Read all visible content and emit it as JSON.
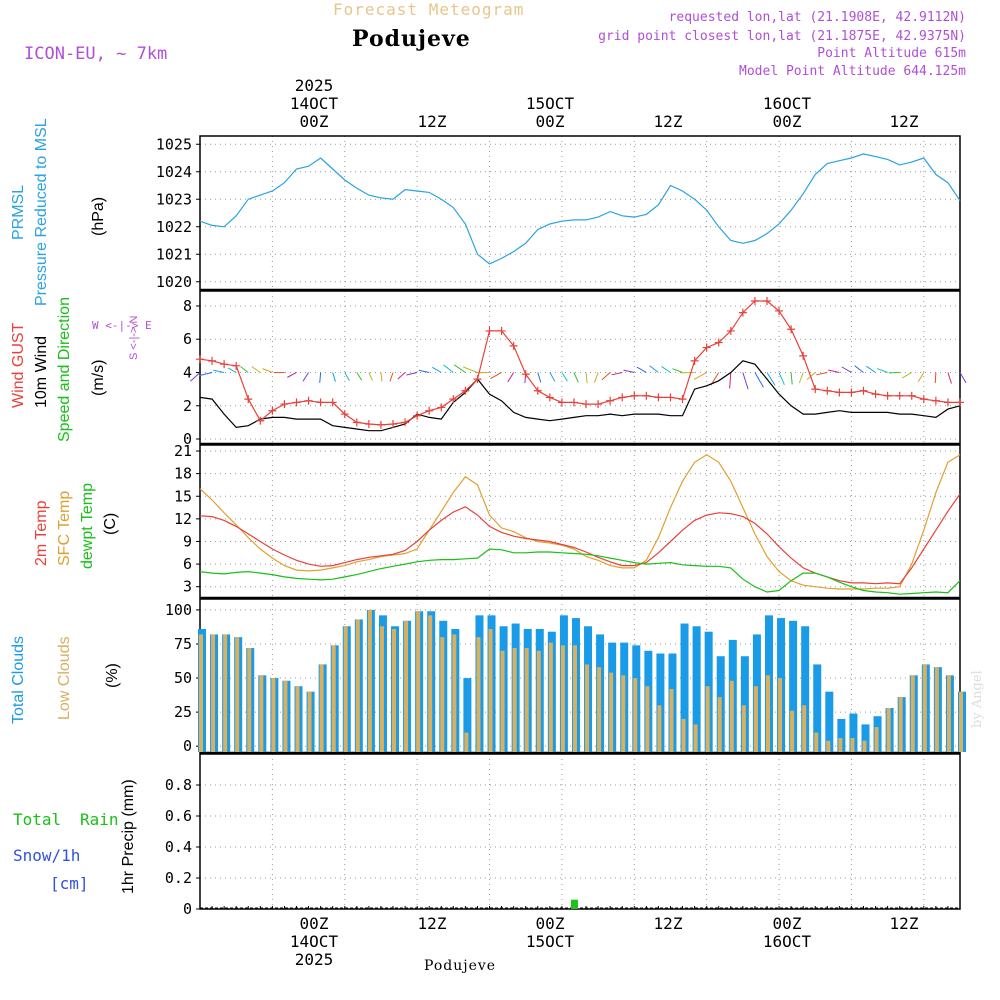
{
  "header": {
    "product": "Forecast Meteogram",
    "location": "Podujeve",
    "model": "ICON-EU, ~ 7km",
    "requested": "requested lon,lat (21.1908E, 42.9112N)",
    "gridpoint": "grid point closest lon,lat (21.1875E, 42.9375N)",
    "point_alt": "Point Altitude 615m",
    "model_alt": "Model Point Altitude 644.125m"
  },
  "time_axis": {
    "top": [
      {
        "l1": "2025",
        "l2": "14OCT",
        "l3": "00Z"
      },
      {
        "l1": "",
        "l2": "",
        "l3": "12Z"
      },
      {
        "l1": "",
        "l2": "15OCT",
        "l3": "00Z"
      },
      {
        "l1": "",
        "l2": "",
        "l3": "12Z"
      },
      {
        "l1": "",
        "l2": "16OCT",
        "l3": "00Z"
      },
      {
        "l1": "",
        "l2": "",
        "l3": "12Z"
      }
    ],
    "bottom": [
      {
        "l1": "00Z",
        "l2": "14OCT",
        "l3": "2025"
      },
      {
        "l1": "12Z",
        "l2": "",
        "l3": ""
      },
      {
        "l1": "00Z",
        "l2": "15OCT",
        "l3": ""
      },
      {
        "l1": "12Z",
        "l2": "",
        "l3": ""
      },
      {
        "l1": "00Z",
        "l2": "16OCT",
        "l3": ""
      },
      {
        "l1": "12Z",
        "l2": "",
        "l3": ""
      }
    ],
    "footer": "Podujeve",
    "watermark": "by Angel"
  },
  "panel_labels": {
    "pressure": {
      "a": "PRMSL",
      "b": "Pressure Reduced to MSL",
      "unit": "(hPa)"
    },
    "wind": {
      "gust": "Wind GUST",
      "speed": "10m Wind",
      "dir": "Speed and Direction",
      "unit": "(m/s)",
      "compass": "W <-|-> E",
      "compass_v": "S <-|-> N"
    },
    "temp": {
      "t2m": "2m Temp",
      "sfc": "SFC Temp",
      "dew": "dewpt Temp",
      "unit": "(C)"
    },
    "cloud": {
      "total": "Total Clouds",
      "low": "Low Clouds",
      "unit": "(%)"
    },
    "rain": {
      "total": "Total",
      "rain": "Rain",
      "snow": "Snow/1h",
      "cm": "[cm]",
      "axis": "1hr Precip (mm)"
    }
  },
  "colors": {
    "pressure": "#2aa3e0",
    "gust": "#e8413a",
    "wind": "#000000",
    "t2m": "#e8413a",
    "sfc": "#e0a030",
    "dew": "#18c018",
    "total_cloud": "#1a9be8",
    "low_cloud": "#d8b060",
    "rain": "#20c020",
    "label_green": "#18c018",
    "label_blue": "#3050e0"
  },
  "chart_data": [
    {
      "type": "line",
      "name": "pressure",
      "title": "PRMSL Pressure Reduced to MSL",
      "ylabel": "(hPa)",
      "ylim": [
        1019.7,
        1025.3
      ],
      "yticks": [
        1020,
        1021,
        1022,
        1023,
        1024,
        1025
      ],
      "xlim": [
        -18,
        45
      ],
      "x": [
        -18,
        -17,
        -16,
        -15,
        -14,
        -13,
        -12,
        -11,
        -10,
        -9,
        -8,
        -7,
        -6,
        -5,
        -4,
        -3,
        -2,
        -1,
        0,
        1,
        2,
        3,
        4,
        5,
        6,
        7,
        8,
        9,
        10,
        11,
        12,
        13,
        14,
        15,
        16,
        17,
        18,
        19,
        20,
        21,
        22,
        23,
        24,
        25,
        26,
        27,
        28,
        29,
        30,
        31,
        32,
        33,
        34,
        35,
        36,
        37,
        38,
        39,
        40,
        41,
        42,
        43,
        44,
        45
      ],
      "series": [
        {
          "name": "PRMSL",
          "values": [
            1022.2,
            1022.05,
            1022.0,
            1022.4,
            1023.0,
            1023.15,
            1023.3,
            1023.6,
            1024.1,
            1024.2,
            1024.5,
            1024.1,
            1023.7,
            1023.4,
            1023.15,
            1023.05,
            1023.0,
            1023.35,
            1023.3,
            1023.25,
            1023.0,
            1022.7,
            1022.1,
            1021.0,
            1020.65,
            1020.85,
            1021.1,
            1021.4,
            1021.9,
            1022.1,
            1022.2,
            1022.25,
            1022.25,
            1022.35,
            1022.55,
            1022.4,
            1022.35,
            1022.45,
            1022.8,
            1023.5,
            1023.3,
            1023.0,
            1022.6,
            1022.0,
            1021.5,
            1021.4,
            1021.5,
            1021.75,
            1022.1,
            1022.6,
            1023.2,
            1023.9,
            1024.3,
            1024.4,
            1024.5,
            1024.65,
            1024.55,
            1024.45,
            1024.25,
            1024.35,
            1024.5,
            1023.9,
            1023.6,
            1022.95
          ]
        }
      ]
    },
    {
      "type": "line",
      "name": "wind",
      "title": "Wind GUST / 10m Wind Speed and Direction",
      "ylabel": "(m/s)",
      "ylim": [
        -0.3,
        8.9
      ],
      "yticks": [
        0,
        2,
        4,
        6,
        8
      ],
      "xlim": [
        -18,
        45
      ],
      "x": [
        -18,
        -17,
        -16,
        -15,
        -14,
        -13,
        -12,
        -11,
        -10,
        -9,
        -8,
        -7,
        -6,
        -5,
        -4,
        -3,
        -2,
        -1,
        0,
        1,
        2,
        3,
        4,
        5,
        6,
        7,
        8,
        9,
        10,
        11,
        12,
        13,
        14,
        15,
        16,
        17,
        18,
        19,
        20,
        21,
        22,
        23,
        24,
        25,
        26,
        27,
        28,
        29,
        30,
        31,
        32,
        33,
        34,
        35,
        36,
        37,
        38,
        39,
        40,
        41,
        42,
        43,
        44,
        45
      ],
      "series": [
        {
          "name": "Wind GUST",
          "values": [
            4.8,
            4.7,
            4.5,
            4.4,
            2.4,
            1.1,
            1.7,
            2.1,
            2.2,
            2.3,
            2.2,
            2.2,
            1.5,
            1.0,
            0.9,
            0.85,
            0.9,
            1.0,
            1.4,
            1.7,
            1.9,
            2.4,
            2.9,
            3.6,
            6.5,
            6.5,
            5.6,
            3.9,
            2.9,
            2.5,
            2.2,
            2.2,
            2.1,
            2.1,
            2.3,
            2.5,
            2.6,
            2.6,
            2.5,
            2.5,
            2.4,
            4.7,
            5.5,
            5.8,
            6.5,
            7.6,
            8.3,
            8.3,
            7.7,
            6.6,
            5.0,
            3.0,
            2.9,
            2.8,
            2.8,
            2.9,
            2.7,
            2.6,
            2.6,
            2.6,
            2.4,
            2.3,
            2.2,
            2.2
          ]
        },
        {
          "name": "10m Wind",
          "values": [
            2.5,
            2.4,
            1.5,
            0.7,
            0.8,
            1.2,
            1.3,
            1.3,
            1.2,
            1.2,
            1.2,
            0.8,
            0.7,
            0.6,
            0.5,
            0.5,
            0.7,
            0.9,
            1.5,
            1.3,
            1.2,
            2.2,
            2.8,
            3.6,
            2.7,
            2.3,
            1.6,
            1.3,
            1.2,
            1.1,
            1.2,
            1.3,
            1.4,
            1.4,
            1.5,
            1.4,
            1.5,
            1.5,
            1.5,
            1.4,
            1.4,
            3.0,
            3.2,
            3.5,
            4.0,
            4.7,
            4.5,
            3.6,
            2.7,
            2.0,
            1.5,
            1.5,
            1.6,
            1.7,
            1.6,
            1.6,
            1.6,
            1.6,
            1.5,
            1.5,
            1.4,
            1.3,
            1.8,
            2.0
          ]
        }
      ]
    },
    {
      "type": "line",
      "name": "temperature",
      "title": "2m Temp / SFC Temp / dewpt Temp",
      "ylabel": "(C)",
      "ylim": [
        1.5,
        21.8
      ],
      "yticks": [
        3,
        6,
        9,
        12,
        15,
        18,
        21
      ],
      "xlim": [
        -18,
        45
      ],
      "x": [
        -18,
        -17,
        -16,
        -15,
        -14,
        -13,
        -12,
        -11,
        -10,
        -9,
        -8,
        -7,
        -6,
        -5,
        -4,
        -3,
        -2,
        -1,
        0,
        1,
        2,
        3,
        4,
        5,
        6,
        7,
        8,
        9,
        10,
        11,
        12,
        13,
        14,
        15,
        16,
        17,
        18,
        19,
        20,
        21,
        22,
        23,
        24,
        25,
        26,
        27,
        28,
        29,
        30,
        31,
        32,
        33,
        34,
        35,
        36,
        37,
        38,
        39,
        40,
        41,
        42,
        43,
        44,
        45
      ],
      "series": [
        {
          "name": "2m Temp",
          "values": [
            12.4,
            12.3,
            11.8,
            11.0,
            10.0,
            9.0,
            8.0,
            7.2,
            6.5,
            6.0,
            5.7,
            5.8,
            6.2,
            6.6,
            6.9,
            7.1,
            7.3,
            7.8,
            9.0,
            10.5,
            11.8,
            12.9,
            13.6,
            12.5,
            11.0,
            10.2,
            9.7,
            9.4,
            9.2,
            9.0,
            8.6,
            8.2,
            7.6,
            6.9,
            6.3,
            5.8,
            5.8,
            6.2,
            7.5,
            9.0,
            10.5,
            11.8,
            12.5,
            12.8,
            12.7,
            12.3,
            11.4,
            10.0,
            8.3,
            6.8,
            5.5,
            4.8,
            4.3,
            3.8,
            3.5,
            3.5,
            3.4,
            3.5,
            3.4,
            5.5,
            8.0,
            10.5,
            13.0,
            15.3
          ]
        },
        {
          "name": "SFC Temp",
          "values": [
            16.0,
            14.5,
            12.8,
            11.2,
            9.5,
            8.0,
            6.8,
            5.8,
            5.2,
            5.1,
            5.2,
            5.5,
            5.8,
            6.3,
            6.6,
            7.0,
            7.2,
            7.4,
            8.0,
            10.5,
            13.0,
            15.5,
            17.6,
            16.5,
            12.5,
            10.8,
            10.3,
            9.5,
            9.0,
            8.8,
            8.5,
            8.0,
            7.0,
            6.5,
            5.8,
            5.5,
            5.5,
            6.5,
            9.5,
            13.5,
            17.0,
            19.5,
            20.5,
            19.5,
            17.0,
            13.5,
            10.0,
            7.0,
            5.0,
            3.8,
            3.2,
            3.0,
            2.8,
            2.7,
            2.7,
            2.7,
            2.8,
            2.8,
            3.0,
            6.0,
            10.5,
            15.5,
            19.5,
            20.5
          ]
        },
        {
          "name": "dewpt Temp",
          "values": [
            5.0,
            4.8,
            4.7,
            4.9,
            5.0,
            4.8,
            4.6,
            4.3,
            4.1,
            4.0,
            3.9,
            4.0,
            4.3,
            4.6,
            5.0,
            5.4,
            5.7,
            6.0,
            6.3,
            6.5,
            6.6,
            6.6,
            6.7,
            6.8,
            8.0,
            7.9,
            7.5,
            7.5,
            7.6,
            7.6,
            7.5,
            7.4,
            7.3,
            7.1,
            6.8,
            6.5,
            6.2,
            6.0,
            6.1,
            6.2,
            5.9,
            5.8,
            5.7,
            5.7,
            5.5,
            4.0,
            3.0,
            2.3,
            2.5,
            3.8,
            4.8,
            4.8,
            4.3,
            3.6,
            3.0,
            2.5,
            2.3,
            2.2,
            2.0,
            2.1,
            2.2,
            2.3,
            2.2,
            3.8
          ]
        }
      ]
    },
    {
      "type": "bar",
      "name": "clouds",
      "title": "Total Clouds / Low Clouds",
      "ylabel": "(%)",
      "ylim": [
        -5,
        108
      ],
      "yticks": [
        0,
        25,
        50,
        75,
        100
      ],
      "xlim": [
        -18,
        45
      ],
      "x": [
        -18,
        -17,
        -16,
        -15,
        -14,
        -13,
        -12,
        -11,
        -10,
        -9,
        -8,
        -7,
        -6,
        -5,
        -4,
        -3,
        -2,
        -1,
        0,
        1,
        2,
        3,
        4,
        5,
        6,
        7,
        8,
        9,
        10,
        11,
        12,
        13,
        14,
        15,
        16,
        17,
        18,
        19,
        20,
        21,
        22,
        23,
        24,
        25,
        26,
        27,
        28,
        29,
        30,
        31,
        32,
        33,
        34,
        35,
        36,
        37,
        38,
        39,
        40,
        41,
        42,
        43,
        44,
        45
      ],
      "series": [
        {
          "name": "Total Clouds",
          "values": [
            86,
            82,
            82,
            80,
            72,
            52,
            50,
            48,
            44,
            40,
            60,
            74,
            88,
            93,
            100,
            96,
            88,
            92,
            99,
            99,
            92,
            86,
            50,
            96,
            96,
            88,
            90,
            86,
            86,
            84,
            96,
            94,
            88,
            82,
            76,
            76,
            74,
            70,
            68,
            68,
            90,
            88,
            84,
            66,
            78,
            66,
            82,
            96,
            94,
            92,
            88,
            60,
            40,
            20,
            24,
            16,
            22,
            28,
            36,
            52,
            60,
            58,
            52,
            40
          ]
        },
        {
          "name": "Low Clouds",
          "values": [
            82,
            82,
            82,
            80,
            72,
            52,
            50,
            48,
            44,
            40,
            60,
            74,
            88,
            93,
            100,
            88,
            86,
            92,
            99,
            96,
            80,
            82,
            10,
            80,
            86,
            70,
            72,
            72,
            70,
            76,
            74,
            74,
            60,
            58,
            54,
            52,
            50,
            44,
            30,
            42,
            20,
            16,
            44,
            36,
            48,
            30,
            44,
            52,
            50,
            26,
            30,
            10,
            4,
            6,
            6,
            4,
            14,
            28,
            36,
            52,
            60,
            58,
            52,
            40
          ]
        }
      ]
    },
    {
      "type": "bar",
      "name": "precipitation",
      "title": "1hr Precip (mm)",
      "ylabel": "1hr Precip (mm)",
      "ylim": [
        0,
        1.0
      ],
      "yticks": [
        0,
        0.2,
        0.4,
        0.6,
        0.8
      ],
      "ytick_labels": [
        "0",
        "0.2",
        "0.4",
        "0.6",
        "0.8"
      ],
      "xlim": [
        -18,
        45
      ],
      "x": [
        13
      ],
      "series": [
        {
          "name": "Total Rain",
          "values": [
            0.06
          ]
        }
      ]
    }
  ]
}
